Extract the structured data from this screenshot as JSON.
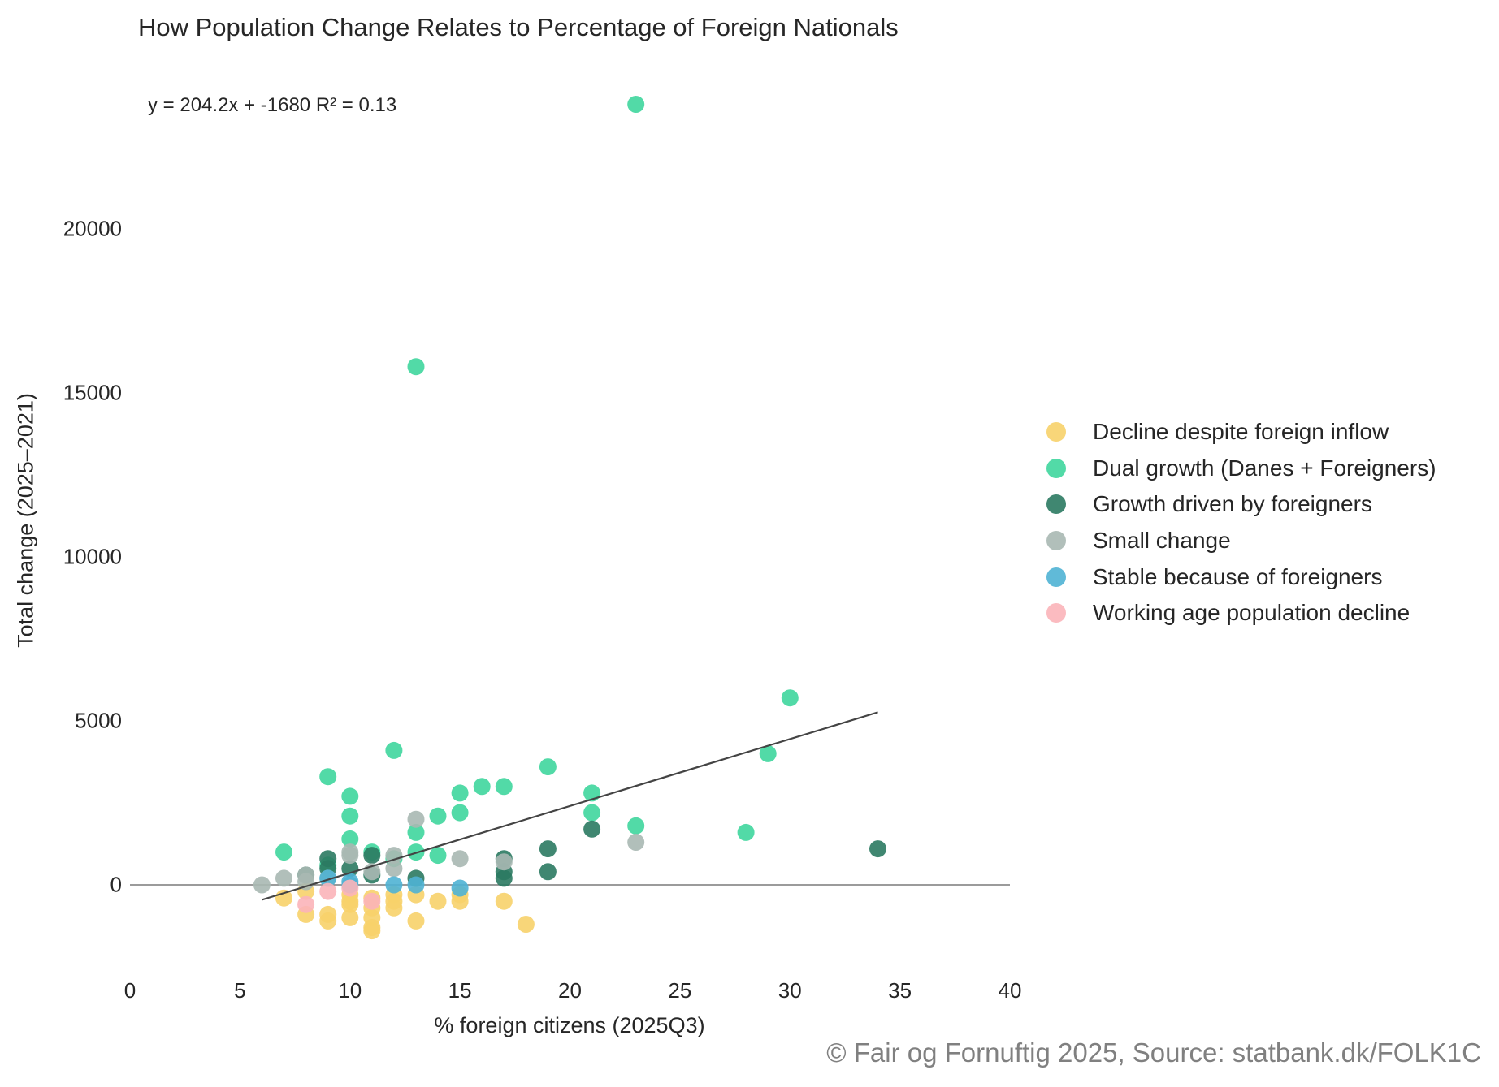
{
  "chart_data": {
    "type": "scatter",
    "title": "How Population Change Relates to Percentage of Foreign Nationals",
    "annotation": "y = 204.2x + -1680   R² = 0.13",
    "xlabel": "% foreign citizens (2025Q3)",
    "ylabel": "Total change (2025–2021)",
    "xlim": [
      0,
      40
    ],
    "ylim": [
      -2800,
      25000
    ],
    "x_ticks": [
      "0",
      "5",
      "10",
      "15",
      "20",
      "25",
      "30",
      "35",
      "40"
    ],
    "y_ticks": [
      "0",
      "5000",
      "10000",
      "15000",
      "20000"
    ],
    "grid": false,
    "legend_position": "right",
    "source": "© Fair og Fornuftig 2025, Source: statbank.dk/FOLK1C",
    "trendline": {
      "x": [
        6,
        34
      ],
      "slope": 204.2,
      "intercept": -1680
    },
    "series": [
      {
        "name": "Decline despite foreign inflow",
        "color": "#f7d26a",
        "points": [
          [
            7,
            -400
          ],
          [
            8,
            -200
          ],
          [
            8,
            -900
          ],
          [
            9,
            -900
          ],
          [
            9,
            -1100
          ],
          [
            10,
            -300
          ],
          [
            10,
            -500
          ],
          [
            10,
            -600
          ],
          [
            10,
            -1000
          ],
          [
            11,
            -400
          ],
          [
            11,
            -700
          ],
          [
            11,
            -1000
          ],
          [
            11,
            -1300
          ],
          [
            11,
            -1400
          ],
          [
            12,
            -300
          ],
          [
            12,
            -500
          ],
          [
            12,
            -700
          ],
          [
            13,
            -300
          ],
          [
            13,
            -1100
          ],
          [
            14,
            -500
          ],
          [
            15,
            -300
          ],
          [
            15,
            -500
          ],
          [
            17,
            -500
          ],
          [
            18,
            -1200
          ]
        ]
      },
      {
        "name": "Dual growth (Danes + Foreigners)",
        "color": "#3fd69d",
        "points": [
          [
            7,
            1000
          ],
          [
            9,
            3300
          ],
          [
            9,
            600
          ],
          [
            10,
            2700
          ],
          [
            10,
            2100
          ],
          [
            10,
            1400
          ],
          [
            11,
            1000
          ],
          [
            12,
            4100
          ],
          [
            12,
            800
          ],
          [
            13,
            15800
          ],
          [
            13,
            1600
          ],
          [
            13,
            1000
          ],
          [
            14,
            2100
          ],
          [
            14,
            900
          ],
          [
            15,
            2800
          ],
          [
            15,
            2200
          ],
          [
            16,
            3000
          ],
          [
            17,
            3000
          ],
          [
            19,
            3600
          ],
          [
            21,
            2800
          ],
          [
            21,
            2200
          ],
          [
            23,
            23800
          ],
          [
            23,
            1800
          ],
          [
            28,
            1600
          ],
          [
            29,
            4000
          ],
          [
            30,
            5700
          ]
        ]
      },
      {
        "name": "Growth driven by foreigners",
        "color": "#2b7a62",
        "points": [
          [
            8,
            300
          ],
          [
            9,
            800
          ],
          [
            9,
            500
          ],
          [
            10,
            500
          ],
          [
            11,
            900
          ],
          [
            11,
            300
          ],
          [
            13,
            200
          ],
          [
            17,
            800
          ],
          [
            17,
            400
          ],
          [
            17,
            200
          ],
          [
            19,
            1100
          ],
          [
            19,
            400
          ],
          [
            21,
            1700
          ],
          [
            34,
            1100
          ]
        ]
      },
      {
        "name": "Small change",
        "color": "#a9b8b3",
        "points": [
          [
            6,
            0
          ],
          [
            7,
            200
          ],
          [
            8,
            300
          ],
          [
            8,
            100
          ],
          [
            9,
            200
          ],
          [
            10,
            1000
          ],
          [
            10,
            900
          ],
          [
            11,
            400
          ],
          [
            12,
            900
          ],
          [
            12,
            500
          ],
          [
            13,
            2000
          ],
          [
            15,
            800
          ],
          [
            17,
            700
          ],
          [
            23,
            1300
          ]
        ]
      },
      {
        "name": "Stable because of foreigners",
        "color": "#4fb3d4",
        "points": [
          [
            9,
            200
          ],
          [
            10,
            100
          ],
          [
            10,
            0
          ],
          [
            12,
            0
          ],
          [
            13,
            0
          ],
          [
            15,
            -100
          ]
        ]
      },
      {
        "name": "Working age population decline",
        "color": "#fbb4b9",
        "points": [
          [
            8,
            -600
          ],
          [
            9,
            -200
          ],
          [
            10,
            -100
          ],
          [
            11,
            -500
          ]
        ]
      }
    ]
  }
}
